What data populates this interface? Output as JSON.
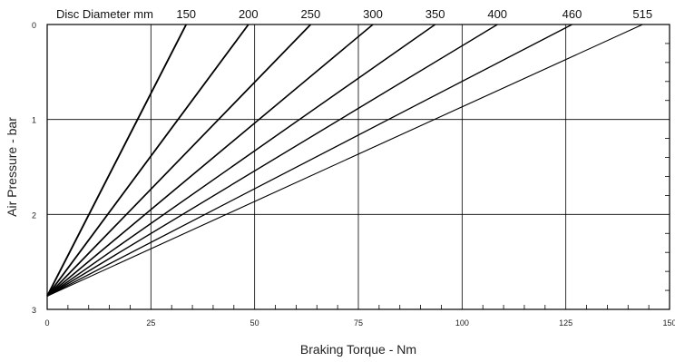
{
  "chart_data": {
    "type": "line",
    "title": "",
    "xlabel": "Braking Torque - Nm",
    "ylabel": "Air Pressure - bar",
    "xlim": [
      0,
      150
    ],
    "ylim": [
      0,
      3
    ],
    "y_inverted": true,
    "x_ticks": [
      "0",
      "25",
      "50",
      "75",
      "100",
      "125",
      "150"
    ],
    "y_ticks": [
      "0",
      "1",
      "2",
      "3"
    ],
    "x_major_gridlines": [
      25,
      50,
      75,
      100,
      125
    ],
    "y_major_gridlines": [
      1,
      2
    ],
    "disc_label": "Disc Diameter mm",
    "series": [
      {
        "name": "150",
        "points": [
          [
            0,
            2.86
          ],
          [
            33.5,
            0
          ]
        ]
      },
      {
        "name": "200",
        "points": [
          [
            0,
            2.86
          ],
          [
            48.5,
            0
          ]
        ]
      },
      {
        "name": "250",
        "points": [
          [
            0,
            2.86
          ],
          [
            63.5,
            0
          ]
        ]
      },
      {
        "name": "300",
        "points": [
          [
            0,
            2.86
          ],
          [
            78.5,
            0
          ]
        ]
      },
      {
        "name": "350",
        "points": [
          [
            0,
            2.86
          ],
          [
            93.5,
            0
          ]
        ]
      },
      {
        "name": "400",
        "points": [
          [
            0,
            2.86
          ],
          [
            108.5,
            0
          ]
        ]
      },
      {
        "name": "460",
        "points": [
          [
            0,
            2.86
          ],
          [
            126.5,
            0
          ]
        ]
      },
      {
        "name": "515",
        "points": [
          [
            0,
            2.86
          ],
          [
            143.5,
            0
          ]
        ]
      }
    ],
    "line_color": "#000000"
  }
}
